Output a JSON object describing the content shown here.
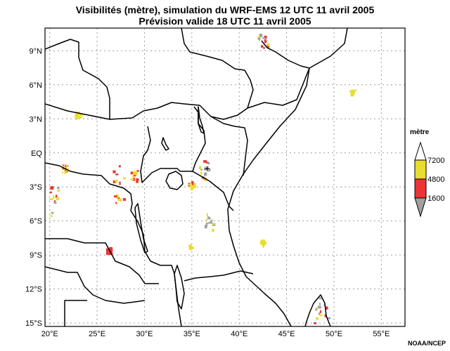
{
  "title_line1": "Visibilités (mètre), simulation du WRF-EMS 12 UTC 11 avril 2005",
  "title_line2": "Prévision valide 18 UTC 11 avril 2005",
  "map": {
    "lon_range": [
      19.5,
      57.5
    ],
    "lat_range": [
      -15.3,
      11.0
    ],
    "x_ticks": [
      "20°E",
      "25°E",
      "30°E",
      "35°E",
      "40°E",
      "45°E",
      "50°E",
      "55°E"
    ],
    "y_ticks": [
      "15°S",
      "12°S",
      "9°S",
      "6°S",
      "3°S",
      "EQ",
      "3°N",
      "6°N",
      "9°N"
    ],
    "grid": "dotted",
    "marker": "+"
  },
  "legend": {
    "title": "mètre",
    "levels": [
      "7200",
      "4800",
      "1600"
    ],
    "colors": {
      "high": "#e8dd2e",
      "mid": "#ee3333",
      "low": "#a0a0a0"
    }
  },
  "credit": "NOAA/NCEP"
}
